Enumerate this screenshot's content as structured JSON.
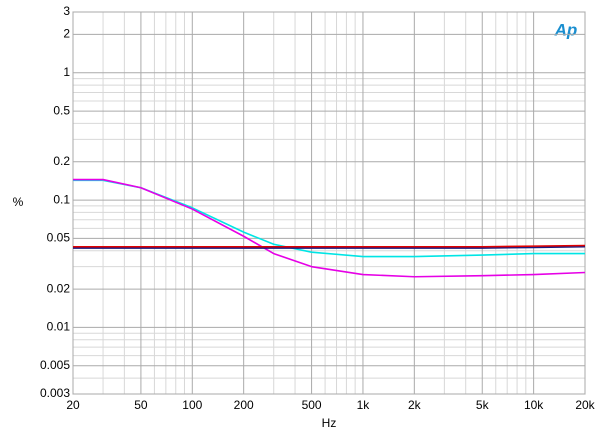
{
  "chart_data": {
    "type": "line",
    "logo": "Ap",
    "ylabel": "%",
    "xlabel": "Hz",
    "xscale": "log",
    "yscale": "log",
    "grid": true,
    "xlim": [
      20,
      20000
    ],
    "ylim": [
      0.003,
      3
    ],
    "xticks": [
      20,
      50,
      100,
      200,
      500,
      {
        "value": 1000,
        "label": "1k"
      },
      {
        "value": 2000,
        "label": "2k"
      },
      {
        "value": 5000,
        "label": "5k"
      },
      {
        "value": 10000,
        "label": "10k"
      },
      {
        "value": 20000,
        "label": "20k"
      }
    ],
    "yticks": [
      3,
      2,
      1,
      0.5,
      0.2,
      0.1,
      0.05,
      0.02,
      0.01,
      0.005,
      0.003
    ],
    "xminor": [
      30,
      40,
      60,
      70,
      80,
      90,
      300,
      400,
      600,
      700,
      800,
      900,
      3000,
      4000,
      6000,
      7000,
      8000,
      9000
    ],
    "yminor": [
      0.004,
      0.006,
      0.007,
      0.008,
      0.009,
      0.03,
      0.04,
      0.06,
      0.07,
      0.08,
      0.09,
      0.3,
      0.4,
      0.6,
      0.7,
      0.8,
      0.9
    ],
    "x": [
      20,
      30,
      50,
      100,
      200,
      300,
      500,
      1000,
      2000,
      5000,
      10000,
      20000
    ],
    "series": [
      {
        "color": "#00e5e5",
        "values": [
          0.143,
          0.143,
          0.125,
          0.087,
          0.056,
          0.045,
          0.039,
          0.036,
          0.036,
          0.037,
          0.038,
          0.038
        ]
      },
      {
        "color": "#e600e6",
        "values": [
          0.145,
          0.145,
          0.125,
          0.085,
          0.052,
          0.038,
          0.03,
          0.026,
          0.025,
          0.0255,
          0.026,
          0.027
        ]
      },
      {
        "color": "#1a1a80",
        "values": [
          0.042,
          0.042,
          0.042,
          0.042,
          0.042,
          0.042,
          0.042,
          0.042,
          0.042,
          0.042,
          0.0425,
          0.043
        ]
      },
      {
        "color": "#e00000",
        "values": [
          0.043,
          0.043,
          0.043,
          0.043,
          0.043,
          0.043,
          0.043,
          0.043,
          0.043,
          0.043,
          0.0435,
          0.044
        ]
      }
    ]
  }
}
